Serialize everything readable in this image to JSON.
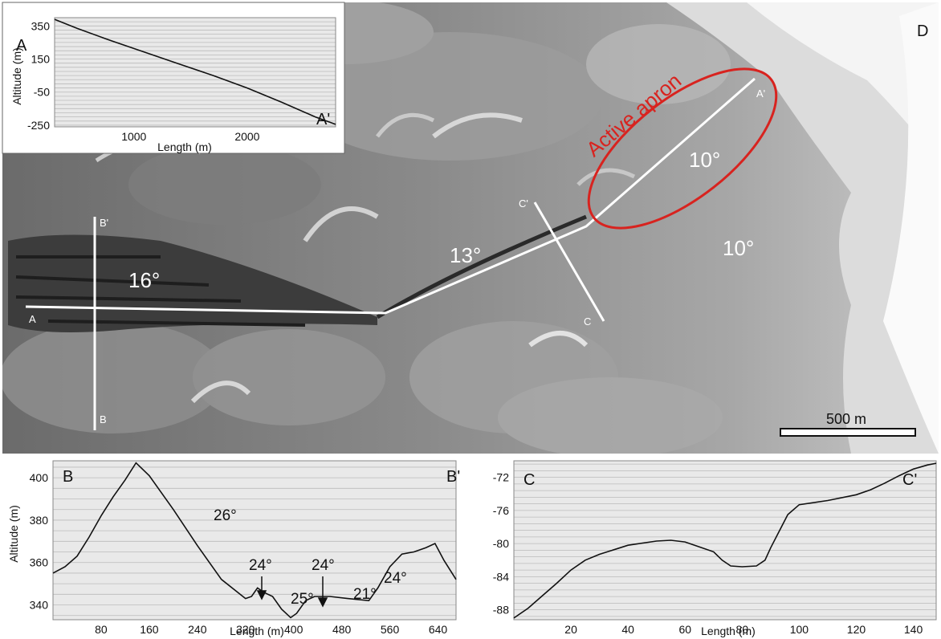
{
  "colors": {
    "apron": "#d8231f",
    "profile_line": "#ffffff",
    "curve": "#111111",
    "plot_bg": "#e9e9e9"
  },
  "map": {
    "panel_letter": "D",
    "apron_label": "Active apron",
    "slope_labels": [
      "16°",
      "13°",
      "10°",
      "10°"
    ],
    "profile_labels": [
      "A",
      "A'",
      "B",
      "B'",
      "C",
      "C'"
    ],
    "scale_label": "500 m"
  },
  "chart_data": [
    {
      "type": "line",
      "title": "A",
      "title_right": "A'",
      "xlabel": "Length (m)",
      "ylabel": "Altitude (m)",
      "xlim": [
        300,
        2780
      ],
      "ylim": [
        -260,
        400
      ],
      "xticks": [
        1000,
        2000
      ],
      "yticks": [
        350,
        150,
        -50,
        -250
      ],
      "grid": true,
      "x": [
        300,
        500,
        800,
        1100,
        1400,
        1700,
        2000,
        2300,
        2600,
        2780
      ],
      "y": [
        390,
        335,
        260,
        190,
        120,
        50,
        -25,
        -110,
        -200,
        -245
      ]
    },
    {
      "type": "line",
      "title": "B",
      "title_right": "B'",
      "xlabel": "Length (m)",
      "ylabel": "Altitude (m)",
      "xlim": [
        0,
        670
      ],
      "ylim": [
        333,
        408
      ],
      "xticks": [
        80,
        160,
        240,
        320,
        400,
        480,
        560,
        640
      ],
      "yticks": [
        400,
        380,
        360,
        340
      ],
      "grid": true,
      "annotations": [
        "26°",
        "24°",
        "24°",
        "25°",
        "21°",
        "24°"
      ],
      "x": [
        0,
        20,
        40,
        60,
        80,
        100,
        120,
        138,
        160,
        200,
        240,
        280,
        320,
        330,
        340,
        350,
        365,
        380,
        395,
        405,
        420,
        435,
        460,
        490,
        525,
        540,
        560,
        580,
        600,
        620,
        635,
        650,
        670
      ],
      "y": [
        355,
        358,
        363,
        372,
        382,
        391,
        399,
        407,
        401,
        385,
        368,
        352,
        343,
        344,
        348,
        346,
        344,
        338,
        334,
        336,
        342,
        344,
        344,
        343,
        342,
        348,
        358,
        364,
        365,
        367,
        369,
        361,
        352
      ]
    },
    {
      "type": "line",
      "title": "C",
      "title_right": "C'",
      "xlabel": "Length (m)",
      "ylabel": "",
      "xlim": [
        0,
        148
      ],
      "ylim": [
        -89.2,
        -70
      ],
      "xticks": [
        20,
        40,
        60,
        80,
        100,
        120,
        140
      ],
      "yticks": [
        -72,
        -76,
        -80,
        -84,
        -88
      ],
      "grid": true,
      "x": [
        0,
        5,
        10,
        15,
        20,
        25,
        30,
        40,
        50,
        55,
        60,
        65,
        70,
        73,
        76,
        80,
        85,
        88,
        90,
        93,
        96,
        100,
        110,
        120,
        125,
        130,
        135,
        140,
        145,
        148
      ],
      "y": [
        -89,
        -87.8,
        -86.3,
        -84.8,
        -83.2,
        -82,
        -81.3,
        -80.2,
        -79.7,
        -79.6,
        -79.8,
        -80.4,
        -81,
        -82,
        -82.7,
        -82.8,
        -82.7,
        -82,
        -80.5,
        -78.5,
        -76.5,
        -75.3,
        -74.8,
        -74.1,
        -73.5,
        -72.7,
        -71.8,
        -71,
        -70.5,
        -70.3
      ]
    }
  ]
}
